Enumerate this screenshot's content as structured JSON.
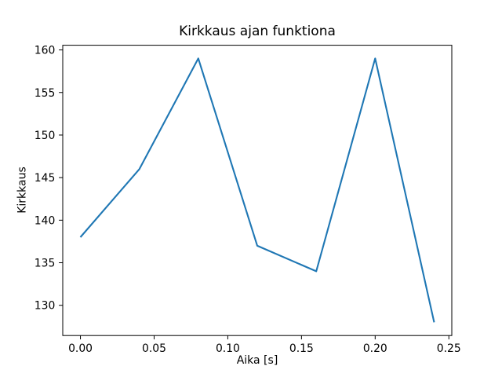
{
  "chart_data": {
    "type": "line",
    "title": "Kirkkaus ajan funktiona",
    "xlabel": "Aika [s]",
    "ylabel": "Kirkkaus",
    "x": [
      0.0,
      0.04,
      0.08,
      0.12,
      0.16,
      0.2,
      0.24
    ],
    "y": [
      138,
      146,
      159,
      137,
      134,
      159,
      128
    ],
    "series": [
      {
        "name": "kirkkaus",
        "color": "#1f77b4"
      }
    ],
    "line_color": "#1f77b4",
    "line_width": 2.1,
    "markers": false,
    "grid": false,
    "legend": "none",
    "xlim": [
      -0.012,
      0.252
    ],
    "ylim": [
      126.45,
      160.55
    ],
    "xticks": {
      "values": [
        0.0,
        0.05,
        0.1,
        0.15,
        0.2,
        0.25
      ],
      "labels": [
        "0.00",
        "0.05",
        "0.10",
        "0.15",
        "0.20",
        "0.25"
      ]
    },
    "yticks": {
      "values": [
        130,
        135,
        140,
        145,
        150,
        155,
        160
      ],
      "labels": [
        "130",
        "135",
        "140",
        "145",
        "150",
        "155",
        "160"
      ]
    },
    "background_color": "#ffffff",
    "axis_color": "#000000"
  }
}
